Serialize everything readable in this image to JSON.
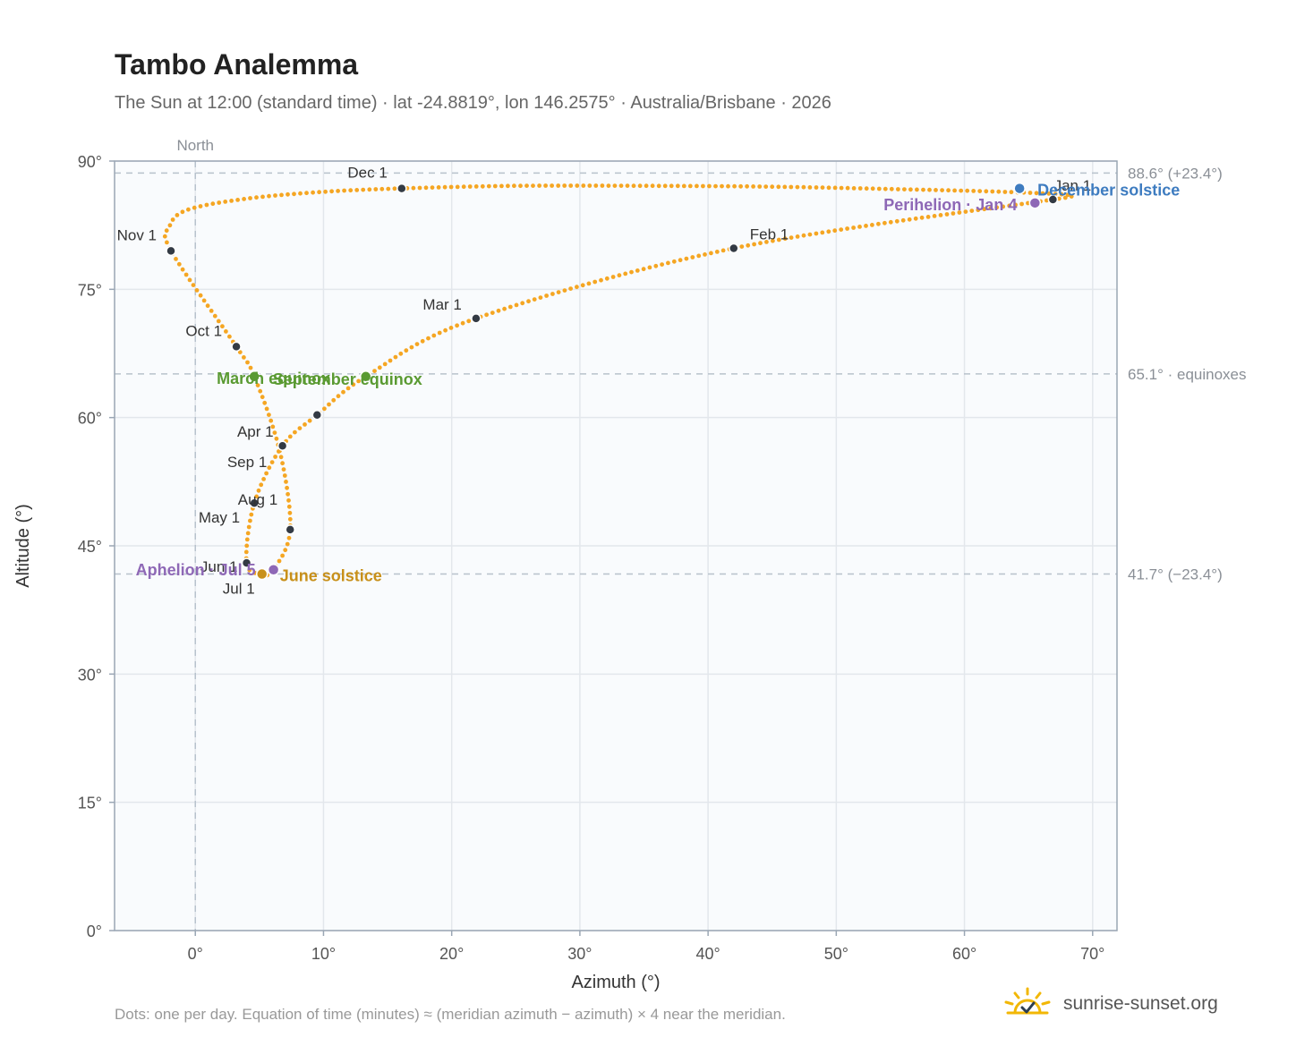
{
  "title": "Tambo Analemma",
  "subtitle": "The Sun at 12:00 (standard time) · lat -24.8819°, lon 146.2575° · Australia/Brisbane · 2026",
  "footnote": "Dots: one per day. Equation of time (minutes) ≈ (meridian azimuth − azimuth) × 4 near the meridian.",
  "brand": {
    "name": "sunrise-sunset.org",
    "icon": "sun-check-icon"
  },
  "colors": {
    "curve": "#f5a623",
    "month_marker": "#333a44",
    "equinox": "#5a9a32",
    "december_solstice": "#3e7cc0",
    "june_solstice": "#c8901a",
    "apsis": "#8e68b6",
    "grid": "#e3e7ec",
    "guide": "#b8c2cc",
    "plot_bg": "#f9fbfd",
    "frame": "#9aa6b4"
  },
  "chart_data": {
    "type": "scatter",
    "xlabel": "Azimuth (°)",
    "ylabel": "Altitude (°)",
    "xlim": [
      -6.3,
      71.9
    ],
    "ylim": [
      0,
      90
    ],
    "x_ticks": [
      0,
      10,
      20,
      30,
      40,
      50,
      60,
      70
    ],
    "x_tick_labels": [
      "0°",
      "10°",
      "20°",
      "30°",
      "40°",
      "50°",
      "60°",
      "70°"
    ],
    "y_ticks": [
      0,
      15,
      30,
      45,
      60,
      75,
      90
    ],
    "y_tick_labels": [
      "0°",
      "15°",
      "30°",
      "45°",
      "60°",
      "75°",
      "90°"
    ],
    "grid": true,
    "north_line": {
      "x": 0,
      "label": "North"
    },
    "reference_lines": [
      {
        "y": 88.6,
        "label": "88.6° (+23.4°)"
      },
      {
        "y": 65.1,
        "label": "65.1° · equinoxes"
      },
      {
        "y": 41.7,
        "label": "41.7° (−23.4°)"
      }
    ],
    "series": [
      {
        "kind": "daily-path",
        "points": [
          [
            66.9,
            85.5
          ],
          [
            42.0,
            79.8
          ],
          [
            21.9,
            71.6
          ],
          [
            13.3,
            64.8
          ],
          [
            9.5,
            60.3
          ],
          [
            6.8,
            56.7
          ],
          [
            4.6,
            50.0
          ],
          [
            4.0,
            43.0
          ],
          [
            5.2,
            41.7
          ],
          [
            6.1,
            42.2
          ],
          [
            7.4,
            46.9
          ],
          [
            6.6,
            56.0
          ],
          [
            4.6,
            64.8
          ],
          [
            3.2,
            68.3
          ],
          [
            -1.9,
            79.5
          ],
          [
            -2.0,
            82.4
          ],
          [
            -0.6,
            84.3
          ],
          [
            4.0,
            85.6
          ],
          [
            10.0,
            86.4
          ],
          [
            16.1,
            86.8
          ],
          [
            25.0,
            87.1
          ],
          [
            35.0,
            87.1
          ],
          [
            45.0,
            87.0
          ],
          [
            55.0,
            86.7
          ],
          [
            63.0,
            86.4
          ],
          [
            68.3,
            86.0
          ],
          [
            66.9,
            85.5
          ]
        ]
      }
    ],
    "month_markers": [
      {
        "label": "Jan 1",
        "x": 66.9,
        "y": 85.5
      },
      {
        "label": "Feb 1",
        "x": 42.0,
        "y": 79.8
      },
      {
        "label": "Mar 1",
        "x": 21.9,
        "y": 71.6
      },
      {
        "label": "Apr 1",
        "x": 6.8,
        "y": 56.7
      },
      {
        "label": "May 1",
        "x": 4.6,
        "y": 50.0
      },
      {
        "label": "Jun 1",
        "x": 4.0,
        "y": 43.0
      },
      {
        "label": "Jul 1",
        "x": 5.2,
        "y": 41.7
      },
      {
        "label": "Aug 1",
        "x": 7.4,
        "y": 46.9
      },
      {
        "label": "Sep 1",
        "x": 9.5,
        "y": 60.3
      },
      {
        "label": "Oct 1",
        "x": 3.2,
        "y": 68.3
      },
      {
        "label": "Nov 1",
        "x": -1.9,
        "y": 79.5
      },
      {
        "label": "Dec 1",
        "x": 16.1,
        "y": 86.8
      }
    ],
    "events": [
      {
        "label": "December solstice",
        "x": 64.3,
        "y": 86.8,
        "color": "december_solstice"
      },
      {
        "label": "Perihelion · Jan 4",
        "x": 65.5,
        "y": 85.1,
        "color": "apsis"
      },
      {
        "label": "March equinox",
        "x": 4.6,
        "y": 64.8,
        "color": "equinox"
      },
      {
        "label": "September equinox",
        "x": 13.3,
        "y": 64.8,
        "color": "equinox"
      },
      {
        "label": "Aphelion · Jul 5",
        "x": 6.1,
        "y": 42.2,
        "color": "apsis"
      },
      {
        "label": "June solstice",
        "x": 5.2,
        "y": 41.7,
        "color": "june_solstice"
      }
    ]
  }
}
